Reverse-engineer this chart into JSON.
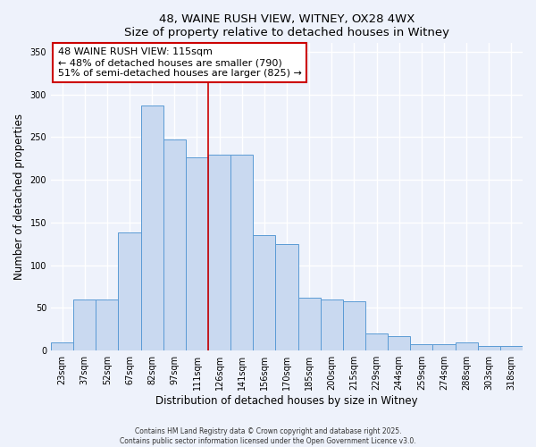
{
  "title": "48, WAINE RUSH VIEW, WITNEY, OX28 4WX",
  "subtitle": "Size of property relative to detached houses in Witney",
  "xlabel": "Distribution of detached houses by size in Witney",
  "ylabel": "Number of detached properties",
  "bar_labels": [
    "23sqm",
    "37sqm",
    "52sqm",
    "67sqm",
    "82sqm",
    "97sqm",
    "111sqm",
    "126sqm",
    "141sqm",
    "156sqm",
    "170sqm",
    "185sqm",
    "200sqm",
    "215sqm",
    "229sqm",
    "244sqm",
    "259sqm",
    "274sqm",
    "288sqm",
    "303sqm",
    "318sqm"
  ],
  "bar_values": [
    10,
    60,
    60,
    138,
    287,
    247,
    226,
    230,
    230,
    135,
    125,
    62,
    60,
    58,
    20,
    17,
    8,
    8,
    10,
    5,
    5
  ],
  "bar_color": "#c9d9f0",
  "bar_edge_color": "#5b9bd5",
  "background_color": "#eef2fb",
  "grid_color": "#ffffff",
  "vline_x_index": 6,
  "vline_color": "#cc0000",
  "annotation_title": "48 WAINE RUSH VIEW: 115sqm",
  "annotation_line1": "← 48% of detached houses are smaller (790)",
  "annotation_line2": "51% of semi-detached houses are larger (825) →",
  "annotation_box_color": "white",
  "annotation_box_edge_color": "#cc0000",
  "ylim": [
    0,
    360
  ],
  "yticks": [
    0,
    50,
    100,
    150,
    200,
    250,
    300,
    350
  ],
  "footnote1": "Contains HM Land Registry data © Crown copyright and database right 2025.",
  "footnote2": "Contains public sector information licensed under the Open Government Licence v3.0."
}
